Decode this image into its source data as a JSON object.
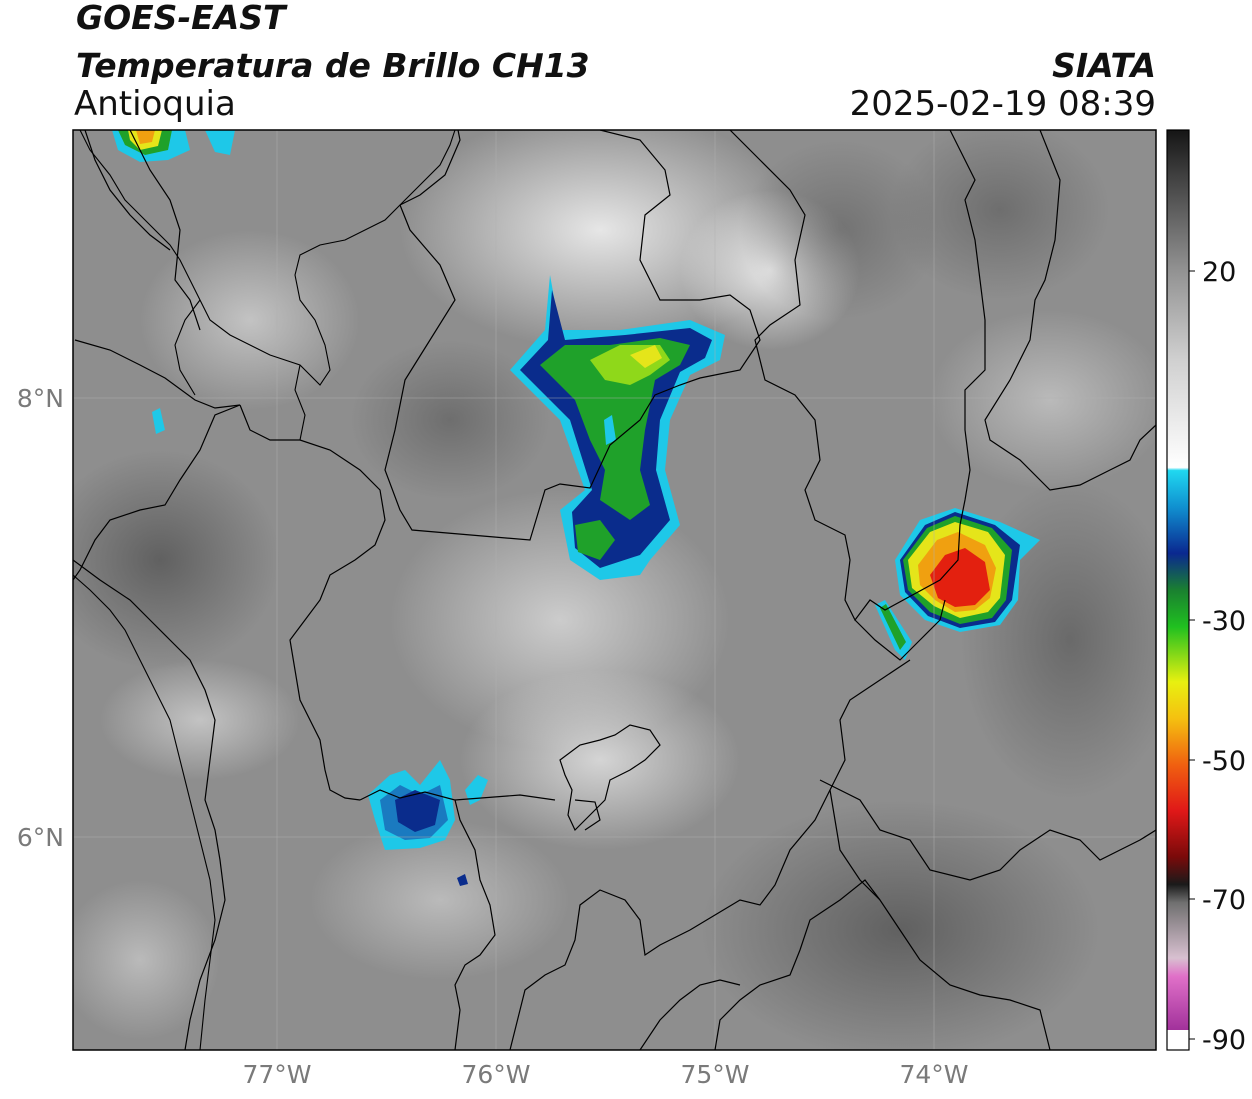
{
  "header": {
    "line1": "GOES-EAST",
    "line2": "Temperatura de Brillo CH13",
    "region": "Antioquia",
    "brand": "SIATA",
    "timestamp": "2025-02-19 08:39"
  },
  "axes": {
    "lon_ticks": [
      "77°W",
      "76°W",
      "75°W",
      "74°W"
    ],
    "lat_ticks": [
      "8°N",
      "6°N"
    ]
  },
  "colorbar": {
    "ticks": [
      "20",
      "-30",
      "-50",
      "-70",
      "-90"
    ]
  },
  "colors": {
    "cold_cloud_blue": "#0a2c8c",
    "green": "#1fa12a",
    "yellow": "#e5e51a",
    "red": "#e3200f",
    "cyan": "#1ec8e8",
    "background_gray": "#8c8c8c"
  }
}
